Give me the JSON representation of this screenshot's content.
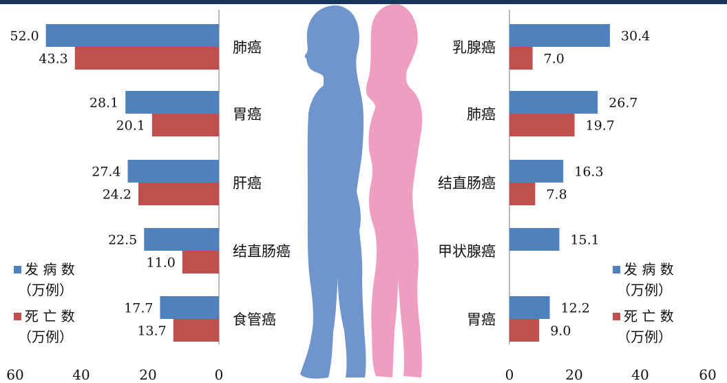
{
  "chart_data": [
    {
      "type": "bar",
      "orientation": "horizontal",
      "direction": "right-to-left",
      "categories": [
        "肺癌",
        "胃癌",
        "肝癌",
        "结直肠癌",
        "食管癌"
      ],
      "series": [
        {
          "name": "发 病 数\n（万例）",
          "color": "#4f81bd",
          "values": [
            52.0,
            28.1,
            27.4,
            22.5,
            17.7
          ],
          "labels": [
            "52.0",
            "28.1",
            "27.4",
            "22.5",
            "17.7"
          ]
        },
        {
          "name": "死 亡 数\n（万例）",
          "color": "#c0504d",
          "values": [
            43.3,
            20.1,
            24.2,
            11.0,
            13.7
          ],
          "labels": [
            "43.3",
            "20.1",
            "24.2",
            "11.0",
            "13.7"
          ]
        }
      ],
      "xlim": [
        0,
        60
      ],
      "ticks": [
        "60",
        "40",
        "20",
        "0"
      ],
      "legend": "bottom-left"
    },
    {
      "type": "bar",
      "orientation": "horizontal",
      "direction": "left-to-right",
      "categories": [
        "乳腺癌",
        "肺癌",
        "结直肠癌",
        "甲状腺癌",
        "胃癌"
      ],
      "series": [
        {
          "name": "发 病 数\n（万例）",
          "color": "#4f81bd",
          "values": [
            30.4,
            26.7,
            16.3,
            15.1,
            12.2
          ],
          "labels": [
            "30.4",
            "26.7",
            "16.3",
            "15.1",
            "12.2"
          ]
        },
        {
          "name": "死 亡 数\n（万例）",
          "color": "#c0504d",
          "values": [
            7.0,
            19.7,
            7.8,
            null,
            9.0
          ],
          "labels": [
            "7.0",
            "19.7",
            "7.8",
            "",
            "9.0"
          ]
        }
      ],
      "xlim": [
        0,
        60
      ],
      "ticks": [
        "0",
        "20",
        "40",
        "60"
      ],
      "legend": "bottom-right"
    }
  ],
  "figures": {
    "male_color": "#6f95cc",
    "female_color": "#ef9ec2"
  }
}
